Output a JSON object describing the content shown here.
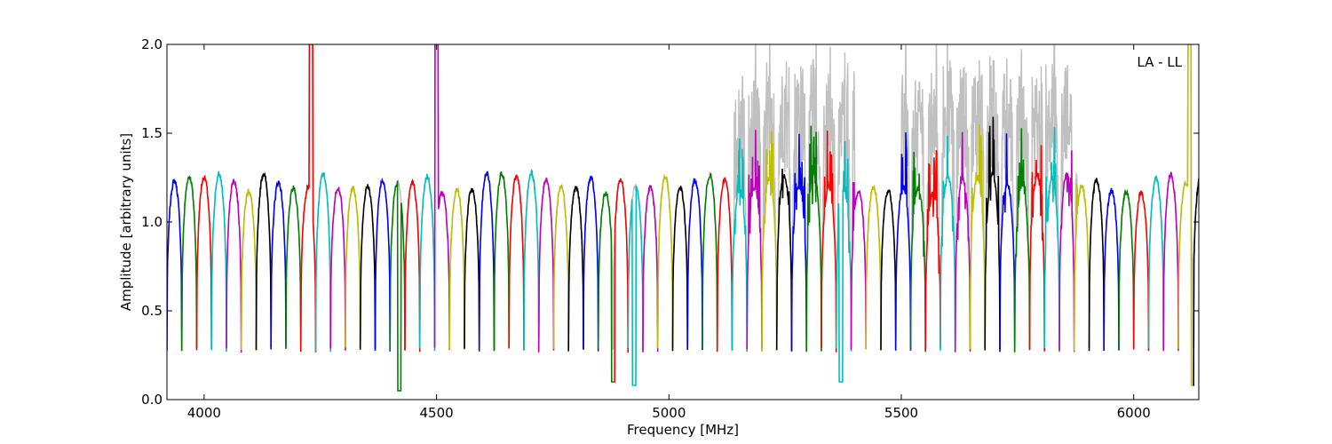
{
  "chart_data": {
    "type": "line",
    "title": "",
    "xlabel": "Frequency [MHz]",
    "ylabel": "Amplitude [arbitrary units]",
    "xlim": [
      3920,
      6140
    ],
    "ylim": [
      0.0,
      2.0
    ],
    "xticks": [
      4000,
      4500,
      5000,
      5500,
      6000
    ],
    "xtick_labels": [
      "4000",
      "4500",
      "5000",
      "5500",
      "6000"
    ],
    "yticks": [
      0.0,
      0.5,
      1.0,
      1.5,
      2.0
    ],
    "ytick_labels": [
      "0.0",
      "0.5",
      "1.0",
      "1.5",
      "2.0"
    ],
    "annotation": "LA - LL",
    "annotation_position": "top-right",
    "grid": false,
    "series_colors": [
      "#0000ff",
      "#008000",
      "#ff0000",
      "#00bfbf",
      "#bf00bf",
      "#bfbf00",
      "#000000"
    ],
    "background_color": "#c0c0c0",
    "channel_width_mhz": 32,
    "channels_start_mhz": 3920,
    "channels_end_mhz": 6140,
    "typical_peak_amplitude": 1.22,
    "typical_edge_amplitude": 0.28,
    "notable_features": [
      {
        "x": 4230,
        "y": 2.0
      },
      {
        "x": 4420,
        "y": 0.05
      },
      {
        "x": 4500,
        "y": 2.0
      },
      {
        "x": 4880,
        "y": 0.1
      },
      {
        "x": 4925,
        "y": 0.08
      },
      {
        "x": 5370,
        "y": 0.1
      },
      {
        "x": 6125,
        "y": 0.08
      },
      {
        "x": 6120,
        "y": 2.0
      }
    ]
  }
}
